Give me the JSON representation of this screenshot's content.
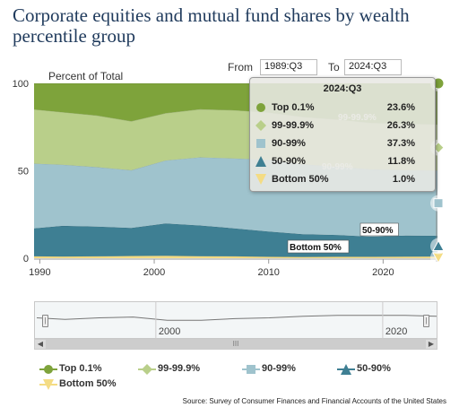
{
  "title": "Corporate equities and mutual fund shares by wealth percentile group",
  "range": {
    "from_label": "From",
    "from_value": "1989:Q3",
    "to_label": "To",
    "to_value": "2024:Q3"
  },
  "tooltip": {
    "title": "2024:Q3",
    "rows": [
      {
        "name": "Top 0.1%",
        "value": "23.6%",
        "color": "#7ea33b"
      },
      {
        "name": "99-99.9%",
        "value": "26.3%",
        "color": "#b9cf8a"
      },
      {
        "name": "90-99%",
        "value": "37.3%",
        "color": "#9fc3cd"
      },
      {
        "name": "50-90%",
        "value": "11.8%",
        "color": "#3e7f93"
      },
      {
        "name": "Bottom 50%",
        "value": "1.0%",
        "color": "#f4dc84"
      }
    ]
  },
  "labels": {
    "band_99": "99-99.9%",
    "band_90": "90-99%",
    "band_50": "50-90%",
    "band_bottom": "Bottom 50%"
  },
  "navigator": {
    "tick_2000": "2000",
    "tick_2020": "2020",
    "grip": "III"
  },
  "source": "Source: Survey of Consumer Finances and Financial Accounts of the United States",
  "chart_data": {
    "type": "area",
    "stacked": true,
    "ylabel": "Percent of Total",
    "ylim": [
      0,
      100
    ],
    "yticks": [
      0,
      50,
      100
    ],
    "xticks": [
      1990,
      2000,
      2010,
      2020
    ],
    "xlim": [
      1989.5,
      2024.75
    ],
    "x": [
      1989.5,
      1992,
      1995,
      1998,
      2001,
      2004,
      2007,
      2010,
      2013,
      2016,
      2019,
      2022,
      2024.75
    ],
    "series": [
      {
        "name": "Bottom 50%",
        "color": "#f4dc84",
        "values": [
          1.1,
          1.0,
          1.1,
          1.3,
          1.4,
          1.2,
          1.1,
          0.8,
          0.7,
          0.8,
          0.8,
          0.9,
          1.0
        ]
      },
      {
        "name": "50-90%",
        "color": "#3e7f93",
        "values": [
          16.0,
          17.5,
          17.0,
          16.0,
          18.5,
          17.5,
          16.0,
          14.5,
          13.0,
          12.5,
          11.5,
          12.0,
          11.8
        ]
      },
      {
        "name": "90-99%",
        "color": "#9fc3cd",
        "values": [
          37.0,
          35.0,
          34.0,
          33.0,
          36.0,
          39.0,
          40.0,
          41.0,
          40.0,
          39.0,
          38.5,
          37.5,
          37.3
        ]
      },
      {
        "name": "99-99.9%",
        "color": "#b9cf8a",
        "values": [
          31.0,
          30.0,
          29.5,
          28.0,
          27.0,
          27.5,
          27.5,
          27.0,
          27.0,
          27.0,
          26.5,
          26.5,
          26.3
        ]
      },
      {
        "name": "Top 0.1%",
        "color": "#7ea33b",
        "values": [
          14.9,
          16.5,
          18.4,
          21.7,
          17.1,
          14.8,
          15.4,
          16.7,
          19.3,
          20.7,
          22.7,
          23.1,
          23.6
        ]
      }
    ],
    "navigator": {
      "x": [
        1989.5,
        1992,
        1995,
        1998,
        2001,
        2004,
        2007,
        2010,
        2013,
        2016,
        2019,
        2022,
        2024.75
      ],
      "values": [
        85,
        83,
        85,
        86,
        82,
        82,
        84,
        85,
        87,
        88,
        88,
        88,
        87
      ]
    }
  }
}
